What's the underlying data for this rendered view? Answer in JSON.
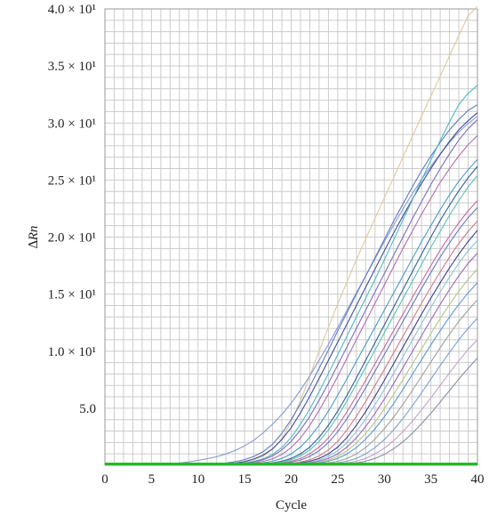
{
  "chart_data": {
    "type": "line",
    "title": "",
    "xlabel": "Cycle",
    "ylabel": "∆Rn",
    "xlim": [
      0,
      40
    ],
    "ylim": [
      0,
      40
    ],
    "grid": true,
    "x_ticks": [
      0,
      5,
      10,
      15,
      20,
      25,
      30,
      35,
      40
    ],
    "x_tick_labels": [
      "0",
      "5",
      "10",
      "15",
      "20",
      "25",
      "30",
      "35",
      "40"
    ],
    "y_ticks": [
      5,
      10,
      15,
      20,
      25,
      30,
      35,
      40
    ],
    "y_tick_labels": [
      "5.0",
      "1.0 × 10¹",
      "1.5 × 10¹",
      "2.0 × 10¹",
      "2.5 × 10¹",
      "3.0 × 10¹",
      "3.5 × 10¹",
      "4.0 × 10¹"
    ],
    "threshold": {
      "value": 0.12,
      "color": "#22bb22"
    },
    "x": [
      1,
      2,
      3,
      4,
      5,
      6,
      7,
      8,
      9,
      10,
      11,
      12,
      13,
      14,
      15,
      16,
      17,
      18,
      19,
      20,
      21,
      22,
      23,
      24,
      25,
      26,
      27,
      28,
      29,
      30,
      31,
      32,
      33,
      34,
      35,
      36,
      37,
      38,
      39,
      40
    ],
    "series": [
      {
        "color": "#e0c89c",
        "values": [
          0.0,
          0.0,
          0.0,
          0.0,
          0.0,
          0.0,
          0.0,
          0.0,
          0.01,
          0.02,
          0.03,
          0.05,
          0.09,
          0.15,
          0.27,
          0.47,
          0.8,
          1.38,
          2.33,
          3.83,
          5.68,
          7.84,
          10.01,
          12.1,
          14.15,
          16.1,
          18.0,
          19.85,
          21.65,
          23.45,
          25.2,
          27.0,
          28.8,
          30.6,
          32.35,
          34.1,
          35.9,
          37.65,
          39.4,
          40.2
        ]
      },
      {
        "color": "#8a9ad0",
        "values": [
          0.0,
          0.0,
          0.0,
          0.0,
          0.03,
          0.08,
          0.12,
          0.2,
          0.3,
          0.43,
          0.58,
          0.76,
          1.0,
          1.3,
          1.7,
          2.2,
          2.85,
          3.6,
          4.45,
          5.45,
          6.6,
          7.85,
          9.2,
          10.6,
          12.1,
          13.6,
          15.1,
          16.6,
          18.1,
          19.6,
          21.05,
          22.45,
          23.8,
          25.05,
          26.2,
          27.3,
          28.3,
          29.2,
          29.95,
          30.6
        ]
      },
      {
        "color": "#5f7bc4",
        "values": [
          0.0,
          0.0,
          0.0,
          0.0,
          0.0,
          0.0,
          0.01,
          0.01,
          0.02,
          0.04,
          0.07,
          0.12,
          0.2,
          0.32,
          0.5,
          0.78,
          1.2,
          1.85,
          2.8,
          4.0,
          5.4,
          6.9,
          8.5,
          10.1,
          11.8,
          13.4,
          15.0,
          16.6,
          18.2,
          19.8,
          21.4,
          22.9,
          24.4,
          25.8,
          27.1,
          28.3,
          29.4,
          30.3,
          31.1,
          31.6
        ]
      },
      {
        "color": "#3f4d9c",
        "values": [
          0.0,
          0.0,
          0.0,
          0.0,
          0.0,
          0.0,
          0.0,
          0.01,
          0.01,
          0.02,
          0.04,
          0.07,
          0.12,
          0.2,
          0.33,
          0.55,
          0.9,
          1.45,
          2.25,
          3.3,
          4.6,
          6.05,
          7.6,
          9.2,
          10.8,
          12.4,
          14.0,
          15.6,
          17.2,
          18.8,
          20.35,
          21.85,
          23.3,
          24.7,
          26.0,
          27.25,
          28.4,
          29.4,
          30.2,
          30.9
        ]
      },
      {
        "color": "#4fb8c4",
        "values": [
          0.0,
          0.0,
          0.0,
          0.0,
          0.0,
          0.0,
          0.0,
          0.0,
          0.0,
          0.01,
          0.02,
          0.04,
          0.07,
          0.12,
          0.2,
          0.34,
          0.57,
          0.95,
          1.55,
          2.45,
          3.6,
          4.95,
          6.45,
          8.05,
          9.7,
          11.35,
          13.0,
          14.65,
          16.3,
          18.0,
          19.75,
          21.5,
          23.25,
          25.0,
          26.75,
          28.45,
          30.1,
          31.6,
          32.6,
          33.3
        ]
      },
      {
        "color": "#7a6fc0",
        "values": [
          0.0,
          0.0,
          0.0,
          0.0,
          0.0,
          0.0,
          0.0,
          0.0,
          0.0,
          0.01,
          0.02,
          0.03,
          0.06,
          0.1,
          0.17,
          0.29,
          0.49,
          0.82,
          1.35,
          2.1,
          3.1,
          4.3,
          5.7,
          7.2,
          8.8,
          10.4,
          12.0,
          13.6,
          15.2,
          16.8,
          18.4,
          20.0,
          21.6,
          23.1,
          24.6,
          26.0,
          27.3,
          28.5,
          29.5,
          30.3
        ]
      },
      {
        "color": "#b06fb0",
        "values": [
          0.0,
          0.0,
          0.0,
          0.0,
          0.0,
          0.0,
          0.0,
          0.0,
          0.0,
          0.0,
          0.01,
          0.02,
          0.04,
          0.07,
          0.12,
          0.2,
          0.34,
          0.57,
          0.95,
          1.55,
          2.4,
          3.5,
          4.8,
          6.25,
          7.8,
          9.4,
          11.0,
          12.6,
          14.2,
          15.8,
          17.4,
          19.0,
          20.5,
          22.0,
          23.4,
          24.8,
          26.0,
          27.1,
          28.1,
          28.9
        ]
      },
      {
        "color": "#4a9bc6",
        "values": [
          0.0,
          0.0,
          0.0,
          0.0,
          0.0,
          0.0,
          0.0,
          0.0,
          0.0,
          0.0,
          0.0,
          0.01,
          0.02,
          0.04,
          0.07,
          0.12,
          0.21,
          0.36,
          0.6,
          1.0,
          1.6,
          2.45,
          3.5,
          4.75,
          6.15,
          7.6,
          9.1,
          10.6,
          12.1,
          13.6,
          15.1,
          16.6,
          18.1,
          19.6,
          21.0,
          22.4,
          23.7,
          24.9,
          25.9,
          26.8
        ]
      },
      {
        "color": "#2f5f9a",
        "values": [
          0.0,
          0.0,
          0.0,
          0.0,
          0.0,
          0.0,
          0.0,
          0.0,
          0.0,
          0.0,
          0.0,
          0.01,
          0.01,
          0.02,
          0.04,
          0.07,
          0.12,
          0.21,
          0.36,
          0.6,
          1.0,
          1.6,
          2.45,
          3.5,
          4.75,
          6.15,
          7.65,
          9.2,
          10.75,
          12.3,
          13.85,
          15.4,
          16.95,
          18.5,
          20.0,
          21.45,
          22.8,
          24.05,
          25.2,
          26.2
        ]
      },
      {
        "color": "#57c2b0",
        "values": [
          0.0,
          0.0,
          0.0,
          0.0,
          0.0,
          0.0,
          0.0,
          0.0,
          0.0,
          0.0,
          0.0,
          0.0,
          0.01,
          0.02,
          0.03,
          0.06,
          0.1,
          0.17,
          0.29,
          0.49,
          0.82,
          1.35,
          2.1,
          3.1,
          4.3,
          5.65,
          7.1,
          8.6,
          10.1,
          11.6,
          13.1,
          14.6,
          16.1,
          17.6,
          19.1,
          20.5,
          21.9,
          23.2,
          24.4,
          25.4
        ]
      },
      {
        "color": "#c86aa0",
        "values": [
          0.0,
          0.0,
          0.0,
          0.0,
          0.0,
          0.0,
          0.0,
          0.0,
          0.0,
          0.0,
          0.0,
          0.0,
          0.01,
          0.01,
          0.02,
          0.04,
          0.07,
          0.12,
          0.21,
          0.36,
          0.6,
          1.0,
          1.6,
          2.4,
          3.45,
          4.7,
          6.05,
          7.45,
          8.9,
          10.35,
          11.8,
          13.25,
          14.7,
          16.1,
          17.5,
          18.85,
          20.1,
          21.25,
          22.3,
          23.2
        ]
      },
      {
        "color": "#6a7ab8",
        "values": [
          0.0,
          0.0,
          0.0,
          0.0,
          0.0,
          0.0,
          0.0,
          0.0,
          0.0,
          0.0,
          0.0,
          0.0,
          0.0,
          0.01,
          0.02,
          0.03,
          0.05,
          0.09,
          0.16,
          0.27,
          0.46,
          0.78,
          1.28,
          2.0,
          2.95,
          4.1,
          5.4,
          6.8,
          8.25,
          9.7,
          11.15,
          12.6,
          14.05,
          15.5,
          16.9,
          18.25,
          19.5,
          20.65,
          21.7,
          22.6
        ]
      },
      {
        "color": "#d07a8a",
        "values": [
          0.0,
          0.0,
          0.0,
          0.0,
          0.0,
          0.0,
          0.0,
          0.0,
          0.0,
          0.0,
          0.0,
          0.0,
          0.0,
          0.0,
          0.01,
          0.02,
          0.03,
          0.06,
          0.1,
          0.17,
          0.29,
          0.49,
          0.82,
          1.35,
          2.1,
          3.1,
          4.3,
          5.6,
          7.0,
          8.4,
          9.85,
          11.3,
          12.75,
          14.2,
          15.6,
          16.95,
          18.25,
          19.45,
          20.5,
          21.4
        ]
      },
      {
        "color": "#3a3f8a",
        "values": [
          0.0,
          0.0,
          0.0,
          0.0,
          0.0,
          0.0,
          0.0,
          0.0,
          0.0,
          0.0,
          0.0,
          0.0,
          0.0,
          0.0,
          0.01,
          0.01,
          0.02,
          0.04,
          0.07,
          0.12,
          0.21,
          0.36,
          0.6,
          1.0,
          1.6,
          2.45,
          3.5,
          4.7,
          6.05,
          7.45,
          8.9,
          10.35,
          11.8,
          13.25,
          14.65,
          16.0,
          17.3,
          18.5,
          19.6,
          20.6
        ]
      },
      {
        "color": "#8fc0d8",
        "values": [
          0.0,
          0.0,
          0.0,
          0.0,
          0.0,
          0.0,
          0.0,
          0.0,
          0.0,
          0.0,
          0.0,
          0.0,
          0.0,
          0.0,
          0.0,
          0.01,
          0.02,
          0.03,
          0.05,
          0.09,
          0.16,
          0.27,
          0.46,
          0.78,
          1.28,
          2.0,
          2.95,
          4.05,
          5.3,
          6.65,
          8.05,
          9.5,
          10.95,
          12.4,
          13.85,
          15.2,
          16.5,
          17.7,
          18.8,
          19.7
        ]
      },
      {
        "color": "#9a6ab8",
        "values": [
          0.0,
          0.0,
          0.0,
          0.0,
          0.0,
          0.0,
          0.0,
          0.0,
          0.0,
          0.0,
          0.0,
          0.0,
          0.0,
          0.0,
          0.0,
          0.0,
          0.01,
          0.02,
          0.04,
          0.07,
          0.12,
          0.21,
          0.36,
          0.6,
          1.0,
          1.6,
          2.4,
          3.4,
          4.55,
          5.8,
          7.15,
          8.55,
          9.95,
          11.35,
          12.75,
          14.1,
          15.4,
          16.6,
          17.7,
          18.6
        ]
      },
      {
        "color": "#b4c88a",
        "values": [
          0.0,
          0.0,
          0.0,
          0.0,
          0.0,
          0.0,
          0.0,
          0.0,
          0.0,
          0.0,
          0.0,
          0.0,
          0.0,
          0.0,
          0.0,
          0.0,
          0.01,
          0.02,
          0.03,
          0.05,
          0.09,
          0.16,
          0.27,
          0.46,
          0.78,
          1.28,
          1.95,
          2.8,
          3.8,
          4.95,
          6.2,
          7.5,
          8.85,
          10.2,
          11.55,
          12.85,
          14.1,
          15.25,
          16.3,
          17.2
        ]
      },
      {
        "color": "#5a9ad0",
        "values": [
          0.0,
          0.0,
          0.0,
          0.0,
          0.0,
          0.0,
          0.0,
          0.0,
          0.0,
          0.0,
          0.0,
          0.0,
          0.0,
          0.0,
          0.0,
          0.0,
          0.0,
          0.01,
          0.02,
          0.04,
          0.07,
          0.12,
          0.21,
          0.36,
          0.6,
          1.0,
          1.55,
          2.3,
          3.2,
          4.25,
          5.4,
          6.65,
          7.95,
          9.25,
          10.55,
          11.8,
          13.0,
          14.1,
          15.1,
          16.0
        ]
      },
      {
        "color": "#a0a0a0",
        "values": [
          0.0,
          0.0,
          0.0,
          0.0,
          0.0,
          0.0,
          0.0,
          0.0,
          0.0,
          0.0,
          0.0,
          0.0,
          0.0,
          0.0,
          0.0,
          0.0,
          0.0,
          0.0,
          0.01,
          0.02,
          0.04,
          0.07,
          0.12,
          0.21,
          0.36,
          0.6,
          1.0,
          1.55,
          2.3,
          3.2,
          4.2,
          5.35,
          6.55,
          7.8,
          9.05,
          10.3,
          11.5,
          12.6,
          13.6,
          14.5
        ]
      },
      {
        "color": "#7aa0d0",
        "values": [
          0.0,
          0.0,
          0.0,
          0.0,
          0.0,
          0.0,
          0.0,
          0.0,
          0.0,
          0.0,
          0.0,
          0.0,
          0.0,
          0.0,
          0.0,
          0.0,
          0.0,
          0.0,
          0.0,
          0.01,
          0.02,
          0.04,
          0.07,
          0.12,
          0.21,
          0.36,
          0.6,
          1.0,
          1.55,
          2.25,
          3.1,
          4.1,
          5.2,
          6.35,
          7.55,
          8.75,
          9.9,
          11.0,
          12.0,
          12.9
        ]
      },
      {
        "color": "#c0a0c8",
        "values": [
          0.0,
          0.0,
          0.0,
          0.0,
          0.0,
          0.0,
          0.0,
          0.0,
          0.0,
          0.0,
          0.0,
          0.0,
          0.0,
          0.0,
          0.0,
          0.0,
          0.0,
          0.0,
          0.0,
          0.0,
          0.01,
          0.02,
          0.04,
          0.07,
          0.12,
          0.21,
          0.36,
          0.6,
          1.0,
          1.5,
          2.15,
          2.95,
          3.85,
          4.85,
          5.9,
          7.0,
          8.1,
          9.15,
          10.15,
          11.0
        ]
      },
      {
        "color": "#8890a8",
        "values": [
          0.0,
          0.0,
          0.0,
          0.0,
          0.0,
          0.0,
          0.0,
          0.0,
          0.0,
          0.0,
          0.0,
          0.0,
          0.0,
          0.0,
          0.0,
          0.0,
          0.0,
          0.0,
          0.0,
          0.0,
          0.0,
          0.01,
          0.02,
          0.04,
          0.07,
          0.12,
          0.21,
          0.36,
          0.6,
          0.95,
          1.45,
          2.05,
          2.8,
          3.65,
          4.55,
          5.55,
          6.55,
          7.55,
          8.5,
          9.4
        ]
      }
    ]
  }
}
